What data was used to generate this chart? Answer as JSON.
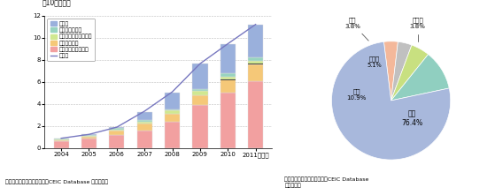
{
  "years": [
    "2004",
    "2005",
    "2006",
    "2007",
    "2008",
    "2009",
    "2010",
    "2011"
  ],
  "contact_center": [
    0.65,
    0.9,
    1.2,
    1.6,
    2.4,
    3.9,
    5.0,
    6.1
  ],
  "software": [
    0.1,
    0.15,
    0.4,
    0.6,
    0.7,
    0.9,
    1.2,
    1.5
  ],
  "transcription": [
    0.05,
    0.07,
    0.1,
    0.2,
    0.3,
    0.35,
    0.3,
    0.3
  ],
  "animation": [
    0.05,
    0.07,
    0.1,
    0.15,
    0.15,
    0.2,
    0.3,
    0.3
  ],
  "other_bar": [
    0.05,
    0.06,
    0.1,
    0.75,
    1.45,
    2.35,
    2.65,
    3.0
  ],
  "export_line": [
    0.9,
    1.25,
    1.9,
    3.35,
    5.1,
    7.65,
    9.45,
    11.2
  ],
  "bar_colors": {
    "contact_center": "#f2a0a0",
    "software": "#f5c878",
    "transcription": "#d0e890",
    "animation": "#98d4c0",
    "other": "#9ab0dc"
  },
  "line_color": "#7878c0",
  "ylim": [
    0,
    12
  ],
  "yticks": [
    0,
    2,
    4,
    6,
    8,
    10,
    12
  ],
  "ylabel": "（10億ドル）",
  "legend_labels": [
    "その他",
    "アニメーション",
    "トランスクリプション",
    "ソフトウェア",
    "コンタクトセンター",
    "輸出額"
  ],
  "source_bar": "資料：フィリピン中央銀行、CEIC Database から作成。",
  "pie_labels": [
    "その他",
    "日本",
    "カナダ",
    "欧州",
    "米国"
  ],
  "pie_values": [
    3.8,
    3.8,
    5.1,
    10.9,
    76.4
  ],
  "pie_colors": [
    "#f4b89a",
    "#c0c0c0",
    "#c8e080",
    "#90cfc0",
    "#a8b8dc"
  ],
  "source_pie": "資料：フィリピン中央銀行、CEIC Database\nから作成。"
}
